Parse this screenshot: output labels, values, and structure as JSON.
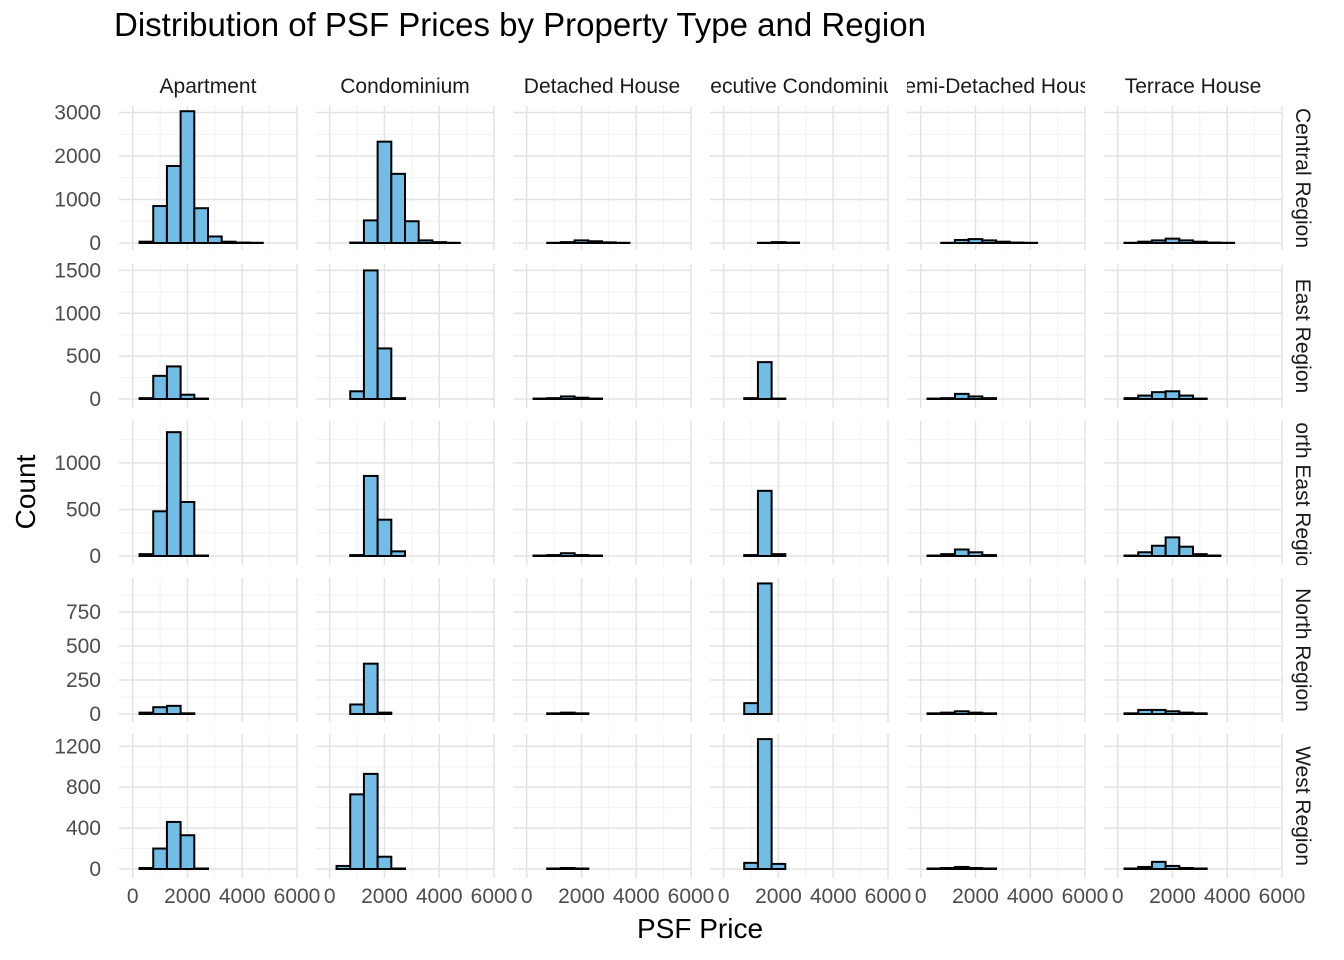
{
  "chart_data": {
    "type": "bar",
    "title": "Distribution of PSF Prices by Property Type and Region",
    "xlabel": "PSF Price",
    "ylabel": "Count",
    "xlim": [
      -500,
      6000
    ],
    "x_ticks": [
      0,
      2000,
      4000,
      6000
    ],
    "x_tick_labels": [
      "0",
      "2000",
      "4000",
      "6000"
    ],
    "bin_width": 500,
    "bin_centers": [
      0,
      500,
      1000,
      1500,
      2000,
      2500,
      3000,
      3500,
      4000,
      4500,
      5000,
      5500
    ],
    "grid": true,
    "fill_color": "#72BDE5",
    "outline_color": "#000000",
    "columns": [
      "Apartment",
      "Condominium",
      "Detached House",
      "Executive Condominium",
      "Semi-Detached House",
      "Terrace House"
    ],
    "rows": [
      {
        "name": "Central Region",
        "ylim": [
          0,
          3150
        ],
        "y_ticks": [
          0,
          1000,
          2000,
          3000
        ],
        "y_tick_labels": [
          "0",
          "1000",
          "2000",
          "3000"
        ],
        "panels": [
          [
            0,
            30,
            850,
            1770,
            3030,
            800,
            150,
            30,
            10,
            5,
            0,
            0
          ],
          [
            0,
            0,
            10,
            520,
            2330,
            1590,
            500,
            60,
            20,
            5,
            0,
            0
          ],
          [
            0,
            0,
            5,
            20,
            60,
            40,
            15,
            5,
            0,
            0,
            0,
            0
          ],
          [
            0,
            0,
            0,
            5,
            20,
            10,
            0,
            0,
            0,
            0,
            0,
            0
          ],
          [
            0,
            0,
            5,
            70,
            90,
            60,
            30,
            10,
            5,
            0,
            0,
            0
          ],
          [
            0,
            5,
            30,
            60,
            100,
            60,
            30,
            10,
            5,
            0,
            0,
            0
          ]
        ]
      },
      {
        "name": "East Region",
        "ylim": [
          0,
          1575
        ],
        "y_ticks": [
          0,
          500,
          1000,
          1500
        ],
        "y_tick_labels": [
          "0",
          "500",
          "1000",
          "1500"
        ],
        "panels": [
          [
            0,
            10,
            270,
            380,
            50,
            5,
            0,
            0,
            0,
            0,
            0,
            0
          ],
          [
            0,
            0,
            90,
            1500,
            590,
            10,
            0,
            0,
            0,
            0,
            0,
            0
          ],
          [
            0,
            5,
            10,
            30,
            15,
            5,
            0,
            0,
            0,
            0,
            0,
            0
          ],
          [
            0,
            0,
            10,
            430,
            5,
            0,
            0,
            0,
            0,
            0,
            0,
            0
          ],
          [
            0,
            5,
            10,
            60,
            30,
            10,
            0,
            0,
            0,
            0,
            0,
            0
          ],
          [
            0,
            10,
            40,
            80,
            90,
            40,
            5,
            0,
            0,
            0,
            0,
            0
          ]
        ]
      },
      {
        "name": "North East Region",
        "ylim": [
          0,
          1450
        ],
        "y_ticks": [
          0,
          500,
          1000
        ],
        "y_tick_labels": [
          "0",
          "500",
          "1000"
        ],
        "panels": [
          [
            0,
            20,
            480,
            1330,
            580,
            5,
            0,
            0,
            0,
            0,
            0,
            0
          ],
          [
            0,
            0,
            10,
            860,
            390,
            50,
            0,
            0,
            0,
            0,
            0,
            0
          ],
          [
            0,
            5,
            10,
            30,
            10,
            5,
            0,
            0,
            0,
            0,
            0,
            0
          ],
          [
            0,
            0,
            10,
            700,
            20,
            0,
            0,
            0,
            0,
            0,
            0,
            0
          ],
          [
            0,
            5,
            20,
            70,
            40,
            10,
            0,
            0,
            0,
            0,
            0,
            0
          ],
          [
            0,
            5,
            40,
            110,
            200,
            100,
            20,
            5,
            0,
            0,
            0,
            0
          ]
        ]
      },
      {
        "name": "North Region",
        "ylim": [
          0,
          1000
        ],
        "y_ticks": [
          0,
          250,
          500,
          750
        ],
        "y_tick_labels": [
          "0",
          "250",
          "500",
          "750"
        ],
        "panels": [
          [
            0,
            10,
            50,
            60,
            5,
            0,
            0,
            0,
            0,
            0,
            0,
            0
          ],
          [
            0,
            0,
            70,
            370,
            10,
            0,
            0,
            0,
            0,
            0,
            0,
            0
          ],
          [
            0,
            0,
            5,
            10,
            5,
            0,
            0,
            0,
            0,
            0,
            0,
            0
          ],
          [
            0,
            0,
            80,
            960,
            0,
            0,
            0,
            0,
            0,
            0,
            0,
            0
          ],
          [
            0,
            5,
            10,
            20,
            10,
            5,
            0,
            0,
            0,
            0,
            0,
            0
          ],
          [
            0,
            5,
            30,
            30,
            20,
            10,
            5,
            0,
            0,
            0,
            0,
            0
          ]
        ]
      },
      {
        "name": "West Region",
        "ylim": [
          0,
          1320
        ],
        "y_ticks": [
          0,
          400,
          800,
          1200
        ],
        "y_tick_labels": [
          "0",
          "400",
          "800",
          "1200"
        ],
        "panels": [
          [
            0,
            10,
            200,
            460,
            330,
            5,
            0,
            0,
            0,
            0,
            0,
            0
          ],
          [
            0,
            30,
            730,
            930,
            120,
            5,
            0,
            0,
            0,
            0,
            0,
            0
          ],
          [
            0,
            0,
            5,
            10,
            5,
            0,
            0,
            0,
            0,
            0,
            0,
            0
          ],
          [
            0,
            0,
            60,
            1270,
            50,
            0,
            0,
            0,
            0,
            0,
            0,
            0
          ],
          [
            0,
            5,
            10,
            20,
            10,
            5,
            0,
            0,
            0,
            0,
            0,
            0
          ],
          [
            0,
            5,
            20,
            70,
            30,
            10,
            5,
            0,
            0,
            0,
            0,
            0
          ]
        ]
      }
    ]
  }
}
